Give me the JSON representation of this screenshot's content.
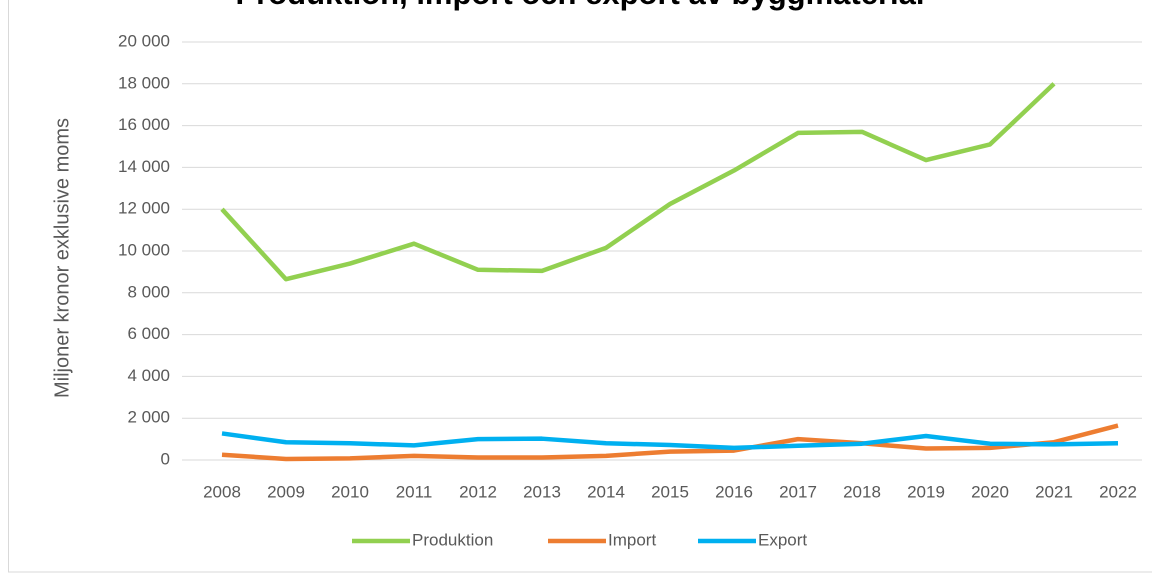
{
  "chart_data": {
    "type": "line",
    "title": "Produktion, import och export av byggmaterial",
    "y_label": "Miljoner kronor exklusive moms",
    "categories": [
      "2008",
      "2009",
      "2010",
      "2011",
      "2012",
      "2013",
      "2014",
      "2015",
      "2016",
      "2017",
      "2018",
      "2019",
      "2020",
      "2021",
      "2022"
    ],
    "series": [
      {
        "name": "Produktion",
        "color": "#92d050",
        "values": [
          12000,
          8650,
          9400,
          10350,
          9100,
          9050,
          10150,
          12250,
          13850,
          15650,
          15700,
          14350,
          15100,
          18000,
          null
        ]
      },
      {
        "name": "Import",
        "color": "#ed7d31",
        "values": [
          250,
          50,
          80,
          200,
          120,
          120,
          200,
          400,
          450,
          1000,
          800,
          550,
          580,
          850,
          1650
        ]
      },
      {
        "name": "Export",
        "color": "#00b0f0",
        "values": [
          1270,
          850,
          800,
          700,
          1000,
          1020,
          800,
          720,
          580,
          680,
          780,
          1150,
          780,
          750,
          800
        ]
      }
    ],
    "ylim": [
      0,
      20000
    ],
    "yticks": [
      0,
      {
        "value": 2000,
        "label": "2 000"
      },
      {
        "value": 4000,
        "label": "4 000"
      },
      {
        "value": 6000,
        "label": "6 000"
      },
      {
        "value": 8000,
        "label": "8 000"
      },
      {
        "value": 10000,
        "label": "10 000"
      },
      {
        "value": 12000,
        "label": "12 000"
      },
      {
        "value": 14000,
        "label": "14 000"
      },
      {
        "value": 16000,
        "label": "16 000"
      },
      {
        "value": 18000,
        "label": "18 000"
      },
      {
        "value": 20000,
        "label": "20 000"
      }
    ],
    "grid": true,
    "legend": "bottom"
  }
}
